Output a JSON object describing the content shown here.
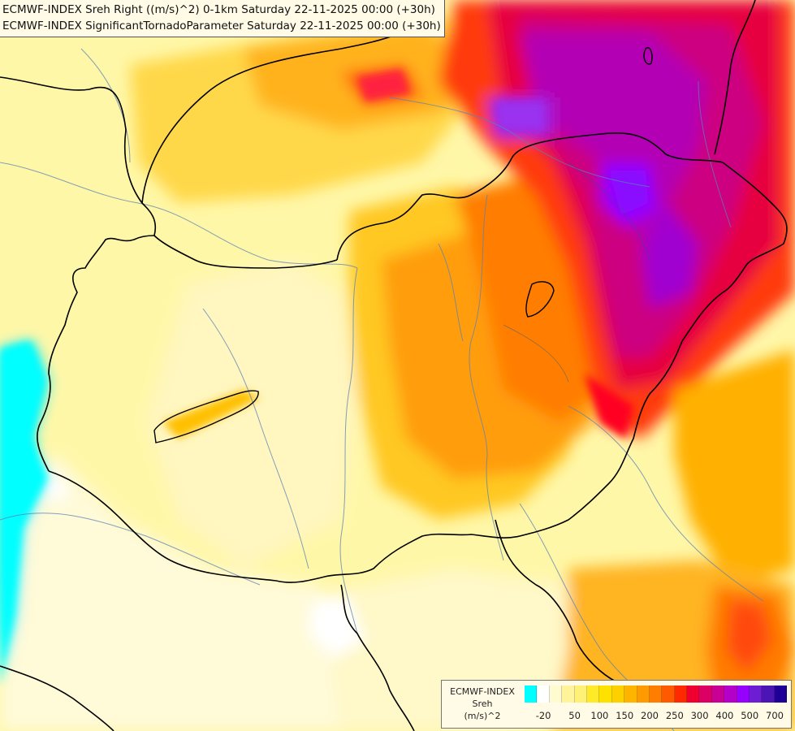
{
  "titles": {
    "line1": "ECMWF-INDEX Sreh Right ((m/s)^2) 0-1km Saturday 22-11-2025 00:00 (+30h)",
    "line2": "ECMWF-INDEX SignificantTornadoParameter Saturday 22-11-2025 00:00 (+30h)"
  },
  "legend": {
    "source": "ECMWF-INDEX",
    "variable": "Sreh",
    "unit": "(m/s)^2",
    "colors": [
      "#00ffff",
      "#ffffff",
      "#fffbd0",
      "#fff39b",
      "#fff176",
      "#ffea28",
      "#ffe100",
      "#ffd000",
      "#ffb400",
      "#ff9a00",
      "#ff7d00",
      "#ff5a00",
      "#ff2a00",
      "#f00030",
      "#dc0064",
      "#c80096",
      "#b400c8",
      "#9600ff",
      "#6e1ed2",
      "#4b14b4",
      "#1e0096"
    ],
    "ticks": [
      "-20",
      "50",
      "100",
      "150",
      "200",
      "250",
      "300",
      "400",
      "500",
      "700"
    ]
  }
}
